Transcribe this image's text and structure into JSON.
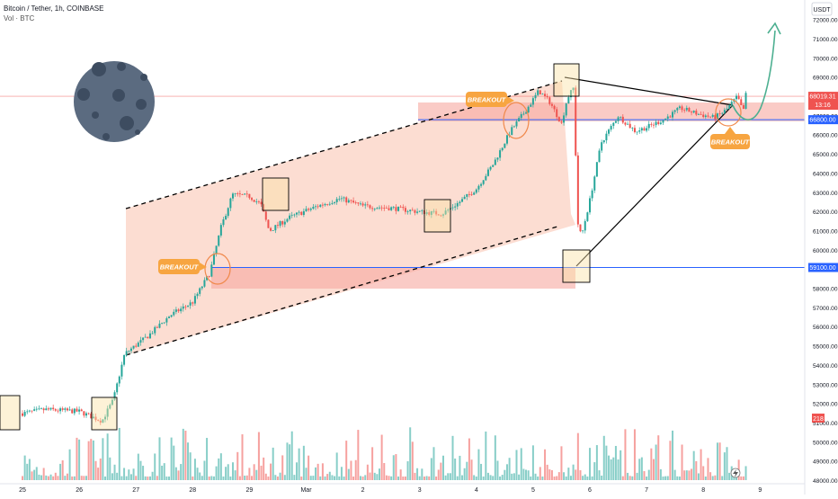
{
  "header": {
    "symbol_line": "Bitcoin / Tether, 1h, COINBASE",
    "volume_line": "Vol · BTC"
  },
  "currency_badge": "USDT",
  "colors": {
    "up": "#26a69a",
    "down": "#ef5350",
    "channel_fill": "#fbd1c3",
    "range_fill": "#f6a8a0",
    "level_line": "#2962ff",
    "callout": "#f7a541",
    "box_fill": "#fbe3a6",
    "moon": "#5b6b80",
    "arrow": "#4caf90"
  },
  "chart_data": {
    "type": "candlestick",
    "symbol": "Bitcoin / Tether",
    "interval": "1h",
    "exchange": "COINBASE",
    "y_ticks": [
      48000,
      49000,
      50000,
      51000,
      52000,
      53000,
      54000,
      55000,
      56000,
      57000,
      58000,
      59000,
      60000,
      61000,
      62000,
      63000,
      64000,
      65000,
      66000,
      67000,
      68000,
      69000,
      70000,
      71000,
      72000
    ],
    "ylim": [
      47700,
      73000
    ],
    "x_ticks": [
      "25",
      "26",
      "27",
      "28",
      "29",
      "Mar",
      "2",
      "3",
      "4",
      "5",
      "6",
      "7",
      "8",
      "9"
    ],
    "price_path": [
      [
        0,
        51500
      ],
      [
        0.4,
        51700
      ],
      [
        1,
        51600
      ],
      [
        1.4,
        51100
      ],
      [
        1.6,
        52200
      ],
      [
        1.8,
        54600
      ],
      [
        2.2,
        55500
      ],
      [
        2.6,
        56600
      ],
      [
        3,
        57300
      ],
      [
        3.3,
        58800
      ],
      [
        3.5,
        61200
      ],
      [
        3.7,
        62900
      ],
      [
        4,
        62800
      ],
      [
        4.2,
        62400
      ],
      [
        4.35,
        61000
      ],
      [
        4.7,
        61700
      ],
      [
        5.2,
        62300
      ],
      [
        5.6,
        62700
      ],
      [
        6,
        62300
      ],
      [
        6.5,
        62200
      ],
      [
        7,
        62000
      ],
      [
        7.4,
        61900
      ],
      [
        7.7,
        62500
      ],
      [
        8,
        63200
      ],
      [
        8.3,
        64500
      ],
      [
        8.6,
        66200
      ],
      [
        8.9,
        67400
      ],
      [
        9.1,
        68300
      ],
      [
        9.3,
        67700
      ],
      [
        9.5,
        66600
      ],
      [
        9.6,
        67900
      ],
      [
        9.72,
        68500
      ],
      [
        9.78,
        61500
      ],
      [
        9.85,
        60700
      ],
      [
        10,
        62600
      ],
      [
        10.2,
        65600
      ],
      [
        10.5,
        67000
      ],
      [
        10.8,
        66200
      ],
      [
        11,
        66400
      ],
      [
        11.3,
        66800
      ],
      [
        11.6,
        67400
      ],
      [
        11.9,
        67100
      ],
      [
        12.2,
        66900
      ],
      [
        12.4,
        67300
      ],
      [
        12.6,
        68000
      ],
      [
        12.7,
        67200
      ],
      [
        12.75,
        68100
      ]
    ],
    "annotations": {
      "breakout_labels": [
        "BREAKOUT",
        "BREAKOUT",
        "BREAKOUT"
      ],
      "level_high": "66800.00",
      "level_low": "59100.00",
      "level_high_value": 66800,
      "level_low_value": 59100,
      "last_price_label": "68019.31",
      "countdown_label": "13:16",
      "last_price": 68019.31,
      "volume_label": "218"
    }
  }
}
